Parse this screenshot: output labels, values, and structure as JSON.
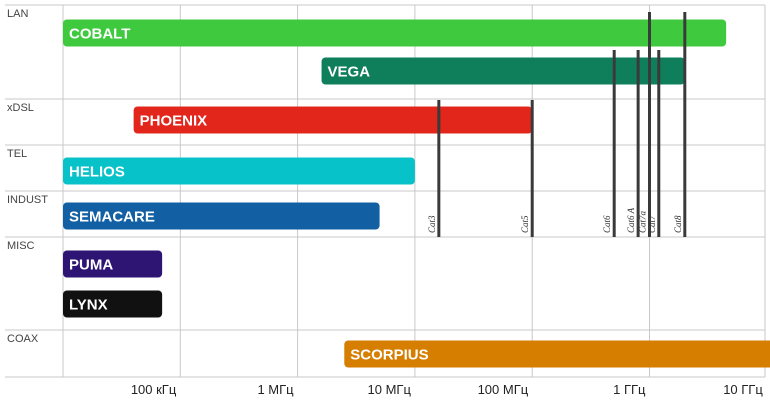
{
  "chart_data": {
    "type": "bar",
    "orientation": "horizontal",
    "x_scale": "log",
    "x_range_hz": [
      10000,
      20000000000
    ],
    "x_ticks": [
      {
        "value": 100000,
        "label": "100 кГц"
      },
      {
        "value": 1000000,
        "label": "1 МГц"
      },
      {
        "value": 10000000,
        "label": "10 МГц"
      },
      {
        "value": 100000000,
        "label": "100 МГц"
      },
      {
        "value": 1000000000,
        "label": "1 ГГц"
      },
      {
        "value": 10000000000,
        "label": "10 ГГц"
      }
    ],
    "grid": true,
    "categories": [
      "LAN",
      "xDSL",
      "TEL",
      "INDUST",
      "MISC",
      "COAX"
    ],
    "bars": [
      {
        "label": "COBALT",
        "category": "LAN",
        "start": 10000,
        "end": 4500000000,
        "color": "#3ec93e"
      },
      {
        "label": "VEGA",
        "category": "LAN",
        "start": 1600000,
        "end": 2000000000,
        "color": "#0e7f5a"
      },
      {
        "label": "PHOENIX",
        "category": "xDSL",
        "start": 40000,
        "end": 100000000,
        "color": "#e2261c"
      },
      {
        "label": "HELIOS",
        "category": "TEL",
        "start": 10000,
        "end": 10000000,
        "color": "#07c2c8"
      },
      {
        "label": "SEMACARE",
        "category": "INDUST",
        "start": 10000,
        "end": 5000000,
        "color": "#1260a3"
      },
      {
        "label": "PUMA",
        "category": "MISC",
        "start": 10000,
        "end": 70000,
        "color": "#2e1574"
      },
      {
        "label": "LYNX",
        "category": "MISC",
        "start": 10000,
        "end": 70000,
        "color": "#111111"
      },
      {
        "label": "SCORPIUS",
        "category": "COAX",
        "start": 2500000,
        "end": 15000000000,
        "color": "#d67e00"
      }
    ],
    "cable_categories": [
      {
        "label": "Cat3",
        "value": 16000000
      },
      {
        "label": "Cat5",
        "value": 100000000
      },
      {
        "label": "Cat6",
        "value": 500000000
      },
      {
        "label": "Cat6 A",
        "value": 800000000
      },
      {
        "label": "Cat7",
        "value": 1200000000
      },
      {
        "label": "Cat7a",
        "value": 1000000000
      },
      {
        "label": "Cat8",
        "value": 2000000000
      }
    ]
  }
}
